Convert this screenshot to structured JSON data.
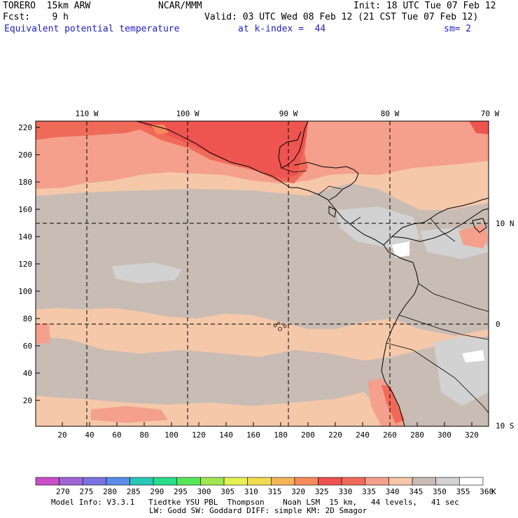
{
  "header": {
    "model": "TORERO  15km ARW",
    "org": "NCAR/MMM",
    "init": "Init: 18 UTC Tue 07 Feb 12",
    "fcst": "Fcst:    9 h",
    "valid": "Valid: 03 UTC Wed 08 Feb 12 (21 CST Tue 07 Feb 12)",
    "field": "Equivalent potential temperature",
    "level": "at k-index =  44",
    "smooth": "sm= 2"
  },
  "map": {
    "top_lon_labels": [
      "110 W",
      "100 W",
      "90 W",
      "80 W",
      "70 W"
    ],
    "right_lat_labels": [
      "10 N",
      "0",
      "10 S"
    ],
    "left_ticks": [
      "220",
      "200",
      "180",
      "160",
      "140",
      "120",
      "100",
      "80",
      "60",
      "40",
      "20"
    ],
    "bottom_ticks": [
      "20",
      "40",
      "60",
      "80",
      "100",
      "120",
      "140",
      "160",
      "180",
      "200",
      "220",
      "240",
      "260",
      "280",
      "300",
      "320"
    ]
  },
  "colorbar": {
    "labels": [
      "270",
      "275",
      "280",
      "285",
      "290",
      "295",
      "300",
      "305",
      "310",
      "315",
      "320",
      "325",
      "330",
      "335",
      "340",
      "345",
      "350",
      "355",
      "360"
    ],
    "unit": "K",
    "colors": [
      "#c84fc8",
      "#a064d2",
      "#7a72e0",
      "#5a8ce8",
      "#28c8b4",
      "#28dc8c",
      "#5ae65a",
      "#a0e650",
      "#e6f050",
      "#f0dc50",
      "#f5b45a",
      "#f58c5a",
      "#f05050",
      "#f06a5a",
      "#f5a08c",
      "#f5c8aa",
      "#c8bcb4",
      "#d2d2d2",
      "#ffffff"
    ]
  },
  "footer": {
    "line1": "Model Info: V3.3.1   Tiedtke YSU PBL  Thompson    Noah LSM  15 km,   44 levels,   41 sec",
    "line2": "LW: Godd SW: Goddard DIFF: simple KM: 2D Smagor"
  }
}
